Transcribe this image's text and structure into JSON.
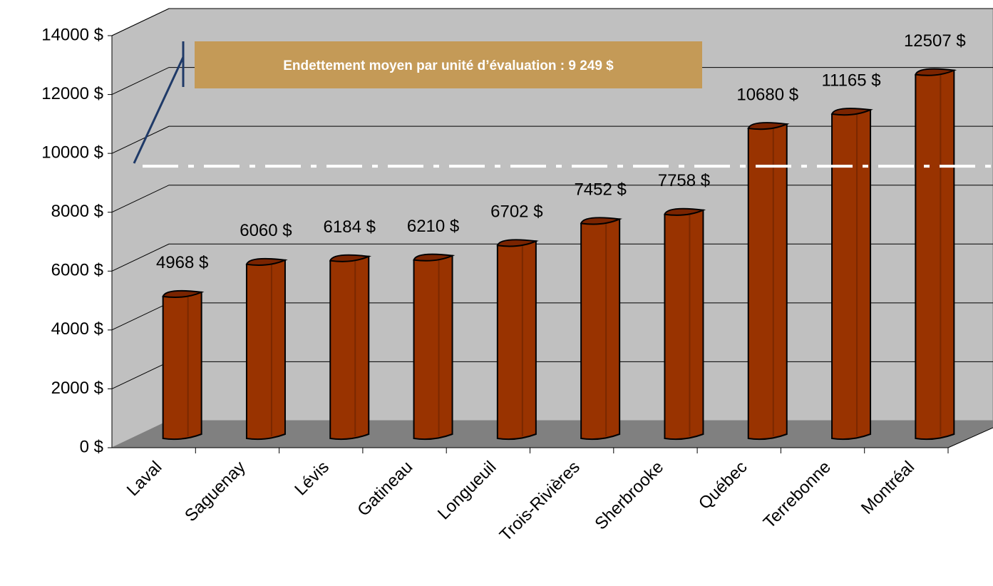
{
  "chart_data": {
    "type": "bar3d",
    "categories": [
      "Laval",
      "Saguenay",
      "Lévis",
      "Gatineau",
      "Longueuil",
      "Trois-Rivières",
      "Sherbrooke",
      "Québec",
      "Terrebonne",
      "Montréal"
    ],
    "values": [
      4968,
      6060,
      6184,
      6210,
      6702,
      7452,
      7758,
      10680,
      11165,
      12507
    ],
    "value_labels": [
      "4968 $",
      "6060 $",
      "6184 $",
      "6210 $",
      "6702 $",
      "7452 $",
      "7758 $",
      "10680 $",
      "11165 $",
      "12507 $"
    ],
    "color": "#993300",
    "ylim": [
      0,
      14000
    ],
    "yticks": [
      {
        "value": 0,
        "label": "0 $"
      },
      {
        "value": 2000,
        "label": "2000 $"
      },
      {
        "value": 4000,
        "label": "4000 $"
      },
      {
        "value": 6000,
        "label": "6000 $"
      },
      {
        "value": 8000,
        "label": "8000 $"
      },
      {
        "value": 10000,
        "label": "10000 $"
      },
      {
        "value": 12000,
        "label": "12000 $"
      },
      {
        "value": 14000,
        "label": "14000 $"
      }
    ],
    "grid": true,
    "annotation": "Endettement moyen par unité d’évaluation : 9 249 $",
    "reference_line": 9249
  }
}
